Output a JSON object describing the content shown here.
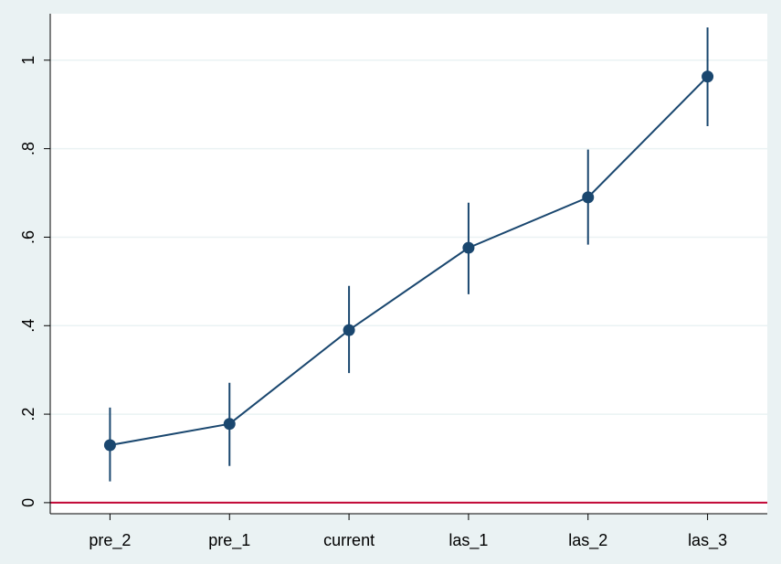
{
  "chart_data": {
    "type": "line",
    "categories": [
      "pre_2",
      "pre_1",
      "current",
      "las_1",
      "las_2",
      "las_3"
    ],
    "values": [
      0.13,
      0.178,
      0.39,
      0.576,
      0.69,
      0.963
    ],
    "lower": [
      0.048,
      0.083,
      0.293,
      0.471,
      0.583,
      0.851
    ],
    "upper": [
      0.215,
      0.271,
      0.49,
      0.678,
      0.798,
      1.074
    ],
    "color": "#1a476f",
    "ylim": [
      -0.025,
      1.105
    ],
    "yticks": [
      0,
      {
        "value": 0.2,
        "label": ".2"
      },
      {
        "value": 0.4,
        "label": ".4"
      },
      {
        "value": 0.6,
        "label": ".6"
      },
      {
        "value": 0.8,
        "label": ".8"
      },
      1
    ],
    "grid": true,
    "yline": 0,
    "yline_color": "#c10534"
  }
}
